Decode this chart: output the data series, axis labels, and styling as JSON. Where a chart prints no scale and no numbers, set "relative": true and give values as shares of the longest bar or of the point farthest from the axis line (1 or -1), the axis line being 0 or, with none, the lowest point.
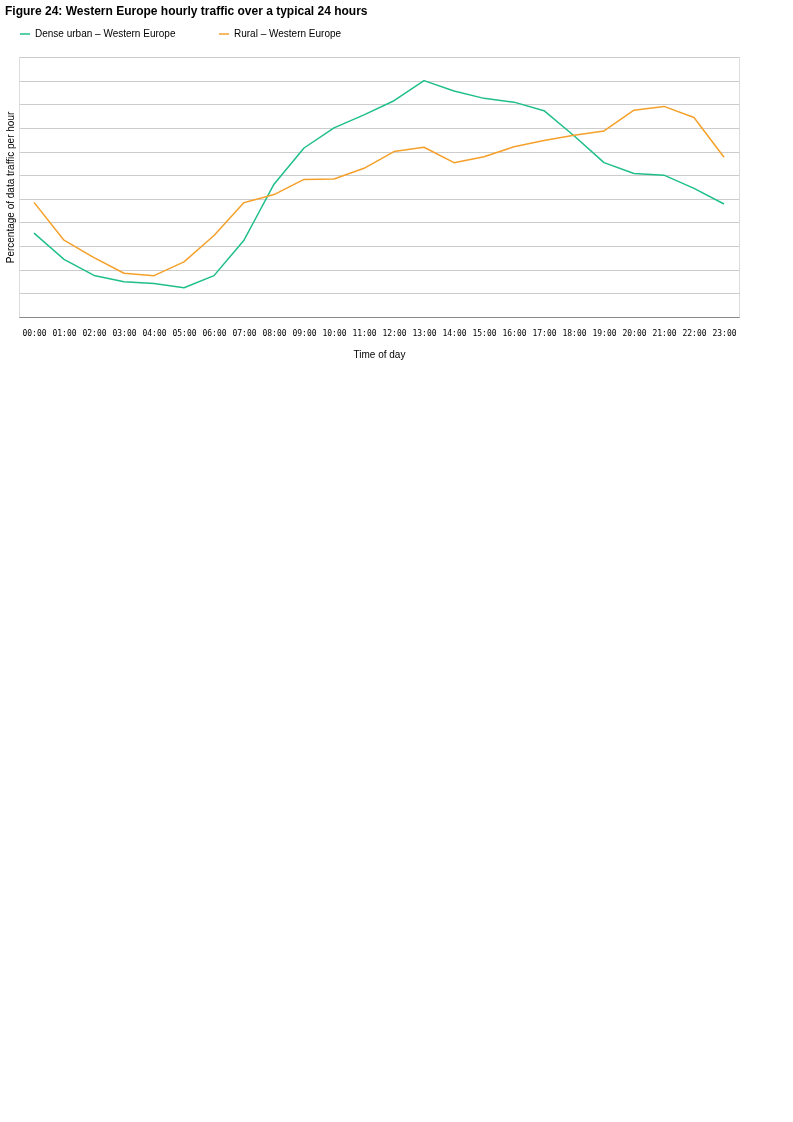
{
  "chart_data": {
    "type": "line",
    "title": "Figure 24: Western Europe hourly traffic over a typical 24 hours",
    "xlabel": "Time of day",
    "ylabel": "Percentage of data traffic per hour",
    "relative": true,
    "grid": "y",
    "legend": "top left",
    "marker": "none",
    "line_style": "solid",
    "categories": [
      "00:00",
      "01:00",
      "02:00",
      "03:00",
      "04:00",
      "05:00",
      "06:00",
      "07:00",
      "08:00",
      "09:00",
      "10:00",
      "11:00",
      "12:00",
      "13:00",
      "14:00",
      "15:00",
      "16:00",
      "17:00",
      "18:00",
      "19:00",
      "20:00",
      "21:00",
      "22:00",
      "23:00"
    ],
    "series": [
      {
        "name": "Dense urban – Western Europe",
        "color": "#1fbf8a",
        "values": [
          0.355,
          0.244,
          0.176,
          0.149,
          0.142,
          0.124,
          0.175,
          0.325,
          0.562,
          0.715,
          0.8,
          0.855,
          0.915,
          1,
          0.956,
          0.925,
          0.909,
          0.873,
          0.767,
          0.653,
          0.607,
          0.6,
          0.544,
          0.478
        ]
      },
      {
        "name": "Rural – Western Europe",
        "color": "#f5a02a",
        "values": [
          0.485,
          0.325,
          0.251,
          0.185,
          0.175,
          0.233,
          0.345,
          0.484,
          0.518,
          0.582,
          0.584,
          0.629,
          0.7,
          0.718,
          0.653,
          0.678,
          0.72,
          0.747,
          0.769,
          0.787,
          0.875,
          0.891,
          0.844,
          0.676
        ]
      }
    ]
  }
}
